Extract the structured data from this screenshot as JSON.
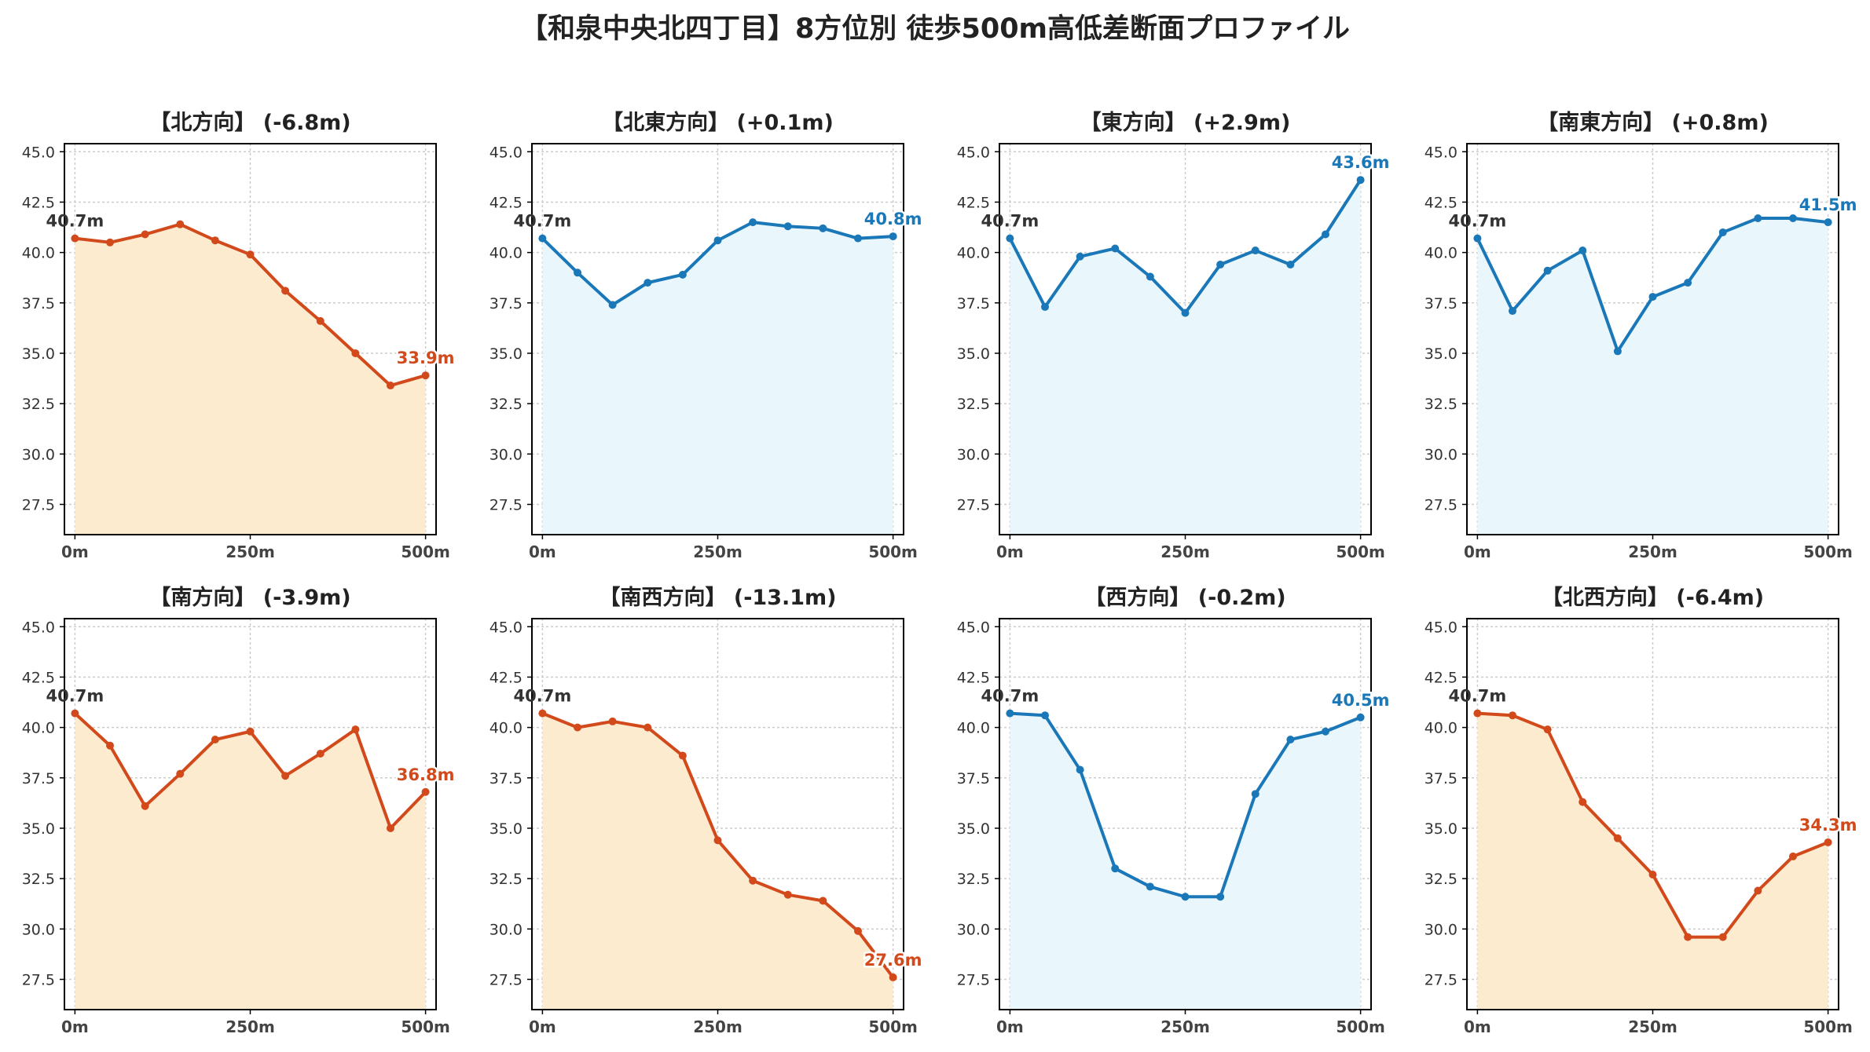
{
  "figure": {
    "title": "【和泉中央北四丁目】8方位別 徒歩500m高低差断面プロファイル"
  },
  "colors": {
    "down_line": "#d24a1b",
    "down_fill": "#fdebd0",
    "up_line": "#1a78b8",
    "up_fill": "#e9f6fb",
    "start_label": "#333333",
    "grid": "#cccccc",
    "axis": "#000000"
  },
  "chart_data": [
    {
      "type": "area",
      "title": "【北方向】 (-6.8m)",
      "trend": "down",
      "x": [
        0,
        50,
        100,
        150,
        200,
        250,
        300,
        350,
        400,
        450,
        500
      ],
      "y": [
        40.7,
        40.5,
        40.9,
        41.4,
        40.6,
        39.9,
        38.1,
        36.6,
        35.0,
        33.4,
        33.9
      ],
      "start_label": "40.7m",
      "end_label": "33.9m",
      "xticks": [
        0,
        250,
        500
      ],
      "xtick_labels": [
        "0m",
        "250m",
        "500m"
      ],
      "yticks": [
        27.5,
        30.0,
        32.5,
        35.0,
        37.5,
        40.0,
        42.5,
        45.0
      ],
      "ytick_labels": [
        "27.5",
        "30.0",
        "32.5",
        "35.0",
        "37.5",
        "40.0",
        "42.5",
        "45.0"
      ],
      "xlim": [
        -15,
        515
      ],
      "ylim": [
        26.0,
        45.4
      ],
      "grid": true
    },
    {
      "type": "area",
      "title": "【北東方向】 (+0.1m)",
      "trend": "up",
      "x": [
        0,
        50,
        100,
        150,
        200,
        250,
        300,
        350,
        400,
        450,
        500
      ],
      "y": [
        40.7,
        39.0,
        37.4,
        38.5,
        38.9,
        40.6,
        41.5,
        41.3,
        41.2,
        40.7,
        40.8
      ],
      "start_label": "40.7m",
      "end_label": "40.8m",
      "xticks": [
        0,
        250,
        500
      ],
      "xtick_labels": [
        "0m",
        "250m",
        "500m"
      ],
      "yticks": [
        27.5,
        30.0,
        32.5,
        35.0,
        37.5,
        40.0,
        42.5,
        45.0
      ],
      "ytick_labels": [
        "27.5",
        "30.0",
        "32.5",
        "35.0",
        "37.5",
        "40.0",
        "42.5",
        "45.0"
      ],
      "xlim": [
        -15,
        515
      ],
      "ylim": [
        26.0,
        45.4
      ],
      "grid": true
    },
    {
      "type": "area",
      "title": "【東方向】 (+2.9m)",
      "trend": "up",
      "x": [
        0,
        50,
        100,
        150,
        200,
        250,
        300,
        350,
        400,
        450,
        500
      ],
      "y": [
        40.7,
        37.3,
        39.8,
        40.2,
        38.8,
        37.0,
        39.4,
        40.1,
        39.4,
        40.9,
        43.6
      ],
      "start_label": "40.7m",
      "end_label": "43.6m",
      "xticks": [
        0,
        250,
        500
      ],
      "xtick_labels": [
        "0m",
        "250m",
        "500m"
      ],
      "yticks": [
        27.5,
        30.0,
        32.5,
        35.0,
        37.5,
        40.0,
        42.5,
        45.0
      ],
      "ytick_labels": [
        "27.5",
        "30.0",
        "32.5",
        "35.0",
        "37.5",
        "40.0",
        "42.5",
        "45.0"
      ],
      "xlim": [
        -15,
        515
      ],
      "ylim": [
        26.0,
        45.4
      ],
      "grid": true
    },
    {
      "type": "area",
      "title": "【南東方向】 (+0.8m)",
      "trend": "up",
      "x": [
        0,
        50,
        100,
        150,
        200,
        250,
        300,
        350,
        400,
        450,
        500
      ],
      "y": [
        40.7,
        37.1,
        39.1,
        40.1,
        35.1,
        37.8,
        38.5,
        41.0,
        41.7,
        41.7,
        41.5
      ],
      "start_label": "40.7m",
      "end_label": "41.5m",
      "xticks": [
        0,
        250,
        500
      ],
      "xtick_labels": [
        "0m",
        "250m",
        "500m"
      ],
      "yticks": [
        27.5,
        30.0,
        32.5,
        35.0,
        37.5,
        40.0,
        42.5,
        45.0
      ],
      "ytick_labels": [
        "27.5",
        "30.0",
        "32.5",
        "35.0",
        "37.5",
        "40.0",
        "42.5",
        "45.0"
      ],
      "xlim": [
        -15,
        515
      ],
      "ylim": [
        26.0,
        45.4
      ],
      "grid": true
    },
    {
      "type": "area",
      "title": "【南方向】 (-3.9m)",
      "trend": "down",
      "x": [
        0,
        50,
        100,
        150,
        200,
        250,
        300,
        350,
        400,
        450,
        500
      ],
      "y": [
        40.7,
        39.1,
        36.1,
        37.7,
        39.4,
        39.8,
        37.6,
        38.7,
        39.9,
        35.0,
        36.8
      ],
      "start_label": "40.7m",
      "end_label": "36.8m",
      "xticks": [
        0,
        250,
        500
      ],
      "xtick_labels": [
        "0m",
        "250m",
        "500m"
      ],
      "yticks": [
        27.5,
        30.0,
        32.5,
        35.0,
        37.5,
        40.0,
        42.5,
        45.0
      ],
      "ytick_labels": [
        "27.5",
        "30.0",
        "32.5",
        "35.0",
        "37.5",
        "40.0",
        "42.5",
        "45.0"
      ],
      "xlim": [
        -15,
        515
      ],
      "ylim": [
        26.0,
        45.4
      ],
      "grid": true
    },
    {
      "type": "area",
      "title": "【南西方向】 (-13.1m)",
      "trend": "down",
      "x": [
        0,
        50,
        100,
        150,
        200,
        250,
        300,
        350,
        400,
        450,
        500
      ],
      "y": [
        40.7,
        40.0,
        40.3,
        40.0,
        38.6,
        34.4,
        32.4,
        31.7,
        31.4,
        29.9,
        27.6
      ],
      "start_label": "40.7m",
      "end_label": "27.6m",
      "xticks": [
        0,
        250,
        500
      ],
      "xtick_labels": [
        "0m",
        "250m",
        "500m"
      ],
      "yticks": [
        27.5,
        30.0,
        32.5,
        35.0,
        37.5,
        40.0,
        42.5,
        45.0
      ],
      "ytick_labels": [
        "27.5",
        "30.0",
        "32.5",
        "35.0",
        "37.5",
        "40.0",
        "42.5",
        "45.0"
      ],
      "xlim": [
        -15,
        515
      ],
      "ylim": [
        26.0,
        45.4
      ],
      "grid": true
    },
    {
      "type": "area",
      "title": "【西方向】 (-0.2m)",
      "trend": "up",
      "x": [
        0,
        50,
        100,
        150,
        200,
        250,
        300,
        350,
        400,
        450,
        500
      ],
      "y": [
        40.7,
        40.6,
        37.9,
        33.0,
        32.1,
        31.6,
        31.6,
        36.7,
        39.4,
        39.8,
        40.5
      ],
      "start_label": "40.7m",
      "end_label": "40.5m",
      "xticks": [
        0,
        250,
        500
      ],
      "xtick_labels": [
        "0m",
        "250m",
        "500m"
      ],
      "yticks": [
        27.5,
        30.0,
        32.5,
        35.0,
        37.5,
        40.0,
        42.5,
        45.0
      ],
      "ytick_labels": [
        "27.5",
        "30.0",
        "32.5",
        "35.0",
        "37.5",
        "40.0",
        "42.5",
        "45.0"
      ],
      "xlim": [
        -15,
        515
      ],
      "ylim": [
        26.0,
        45.4
      ],
      "grid": true
    },
    {
      "type": "area",
      "title": "【北西方向】 (-6.4m)",
      "trend": "down",
      "x": [
        0,
        50,
        100,
        150,
        200,
        250,
        300,
        350,
        400,
        450,
        500
      ],
      "y": [
        40.7,
        40.6,
        39.9,
        36.3,
        34.5,
        32.7,
        29.6,
        29.6,
        31.9,
        33.6,
        34.3
      ],
      "start_label": "40.7m",
      "end_label": "34.3m",
      "xticks": [
        0,
        250,
        500
      ],
      "xtick_labels": [
        "0m",
        "250m",
        "500m"
      ],
      "yticks": [
        27.5,
        30.0,
        32.5,
        35.0,
        37.5,
        40.0,
        42.5,
        45.0
      ],
      "ytick_labels": [
        "27.5",
        "30.0",
        "32.5",
        "35.0",
        "37.5",
        "40.0",
        "42.5",
        "45.0"
      ],
      "xlim": [
        -15,
        515
      ],
      "ylim": [
        26.0,
        45.4
      ],
      "grid": true
    }
  ]
}
